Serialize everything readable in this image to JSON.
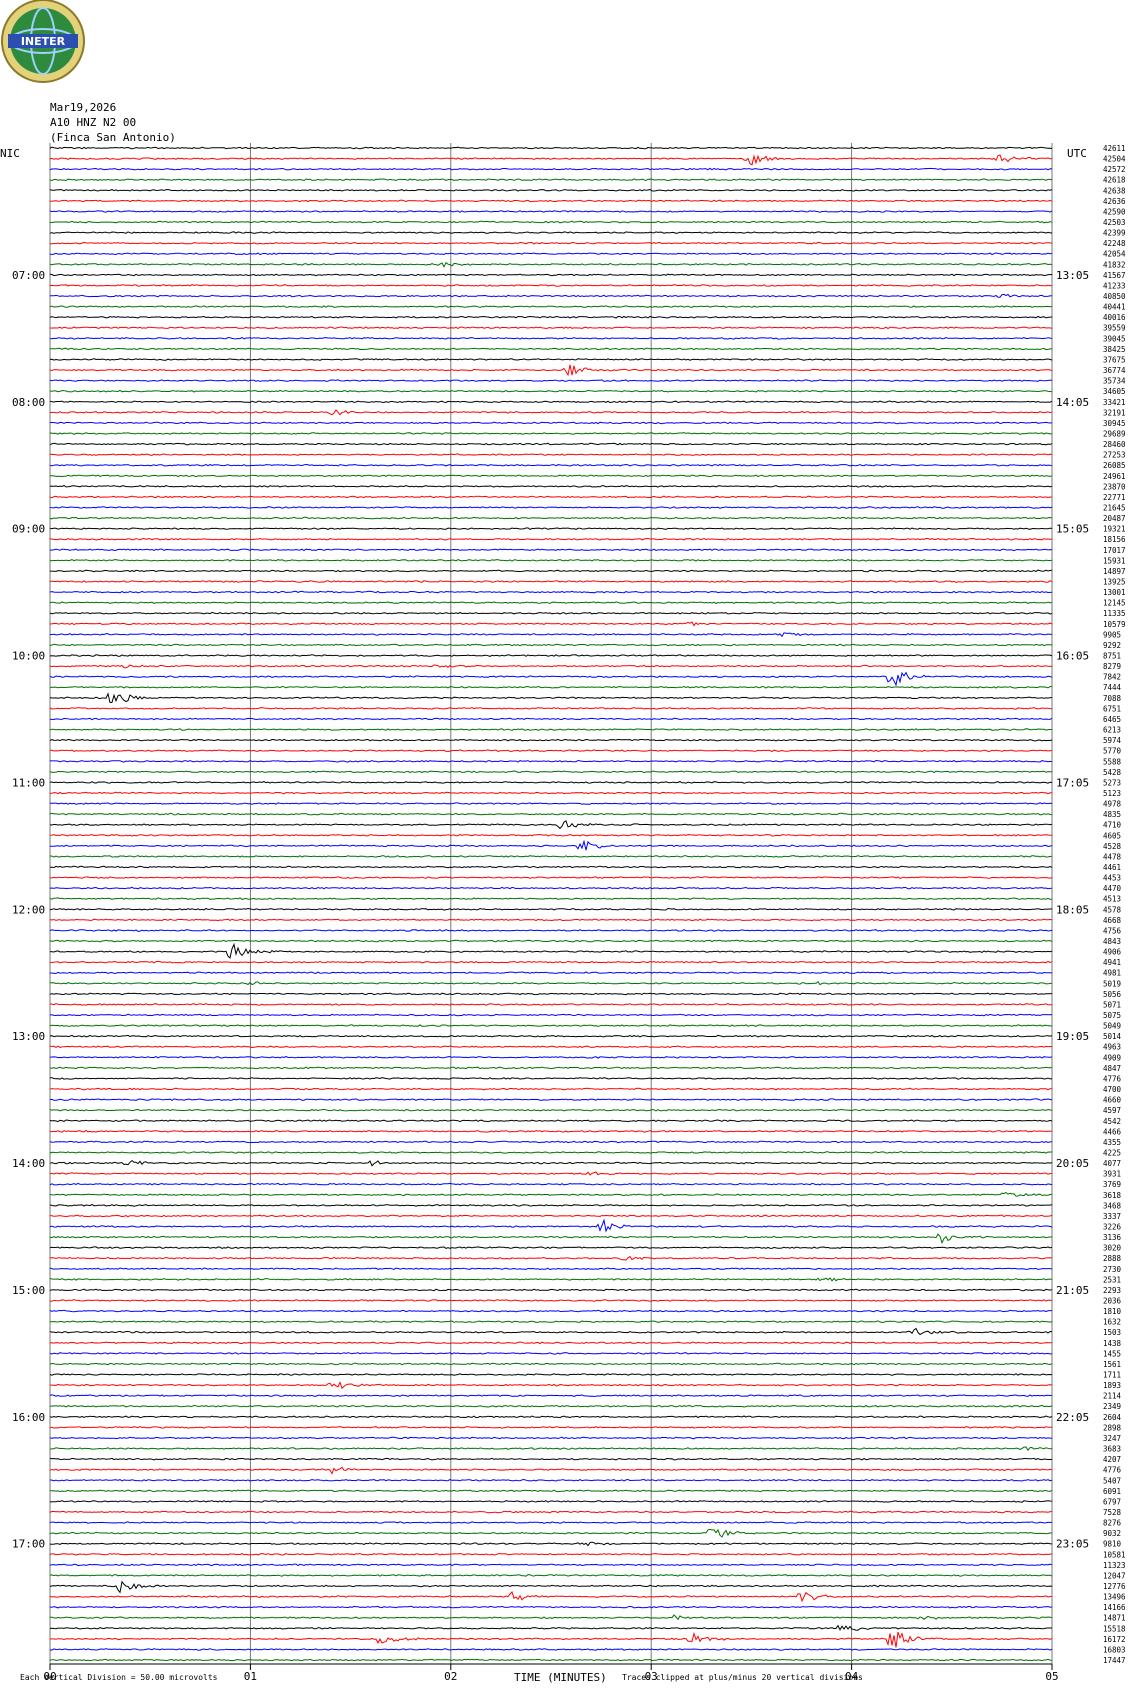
{
  "header": {
    "logo_text": "INETER",
    "date": "Mar19,2026",
    "station": "A10 HNZ N2 00",
    "location": "(Finca San Antonio)"
  },
  "left_timezone": "NIC",
  "right_timezone": "UTC",
  "footer": {
    "scale_note": "Each Vertical Division =    50.00 microvolts",
    "x_axis_label": "TIME (MINUTES)",
    "clip_note": "Traces clipped at plus/minus 20 vertical divisions"
  },
  "colors": {
    "trace_cycle": [
      "#000000",
      "#ff0000",
      "#0000ff",
      "#007000"
    ],
    "grid": "#777777"
  },
  "chart_data": {
    "type": "line",
    "x_label": "TIME (MINUTES)",
    "x_ticks": [
      "00",
      "01",
      "02",
      "03",
      "04",
      "05"
    ],
    "xlim": [
      0,
      5
    ],
    "rows_per_hour": 12,
    "left_hour_labels": [
      "07:00",
      "08:00",
      "09:00",
      "10:00",
      "11:00",
      "12:00",
      "13:00",
      "14:00",
      "15:00",
      "16:00",
      "17:00"
    ],
    "right_hour_labels": [
      "13:05",
      "14:05",
      "15:05",
      "16:05",
      "17:05",
      "18:05",
      "19:05",
      "20:05",
      "21:05",
      "22:05",
      "23:05"
    ],
    "first_labeled_row": 12,
    "row_values": [
      42611,
      42504,
      42572,
      42618,
      42638,
      42636,
      42590,
      42503,
      42399,
      42248,
      42054,
      41832,
      41567,
      41233,
      40850,
      40441,
      40016,
      39559,
      39045,
      38425,
      37675,
      36774,
      35734,
      34605,
      33421,
      32191,
      30945,
      29689,
      28460,
      27253,
      26085,
      24961,
      23870,
      22771,
      21645,
      20487,
      19321,
      18156,
      17017,
      15931,
      14897,
      13925,
      13001,
      12145,
      11335,
      10579,
      9905,
      9292,
      8751,
      8279,
      7842,
      7444,
      7088,
      6751,
      6465,
      6213,
      5974,
      5770,
      5588,
      5428,
      5273,
      5123,
      4978,
      4835,
      4710,
      4605,
      4528,
      4478,
      4461,
      4453,
      4470,
      4513,
      4578,
      4668,
      4756,
      4843,
      4906,
      4941,
      4981,
      5019,
      5056,
      5071,
      5075,
      5049,
      5014,
      4963,
      4909,
      4847,
      4776,
      4700,
      4660,
      4597,
      4542,
      4466,
      4355,
      4225,
      4077,
      3931,
      3769,
      3618,
      3468,
      3337,
      3226,
      3136,
      3020,
      2888,
      2730,
      2531,
      2293,
      2036,
      1810,
      1632,
      1503,
      1438,
      1455,
      1561,
      1711,
      1893,
      2114,
      2349,
      2604,
      2898,
      3247,
      3683,
      4207,
      4776,
      5407,
      6091,
      6797,
      7528,
      8276,
      9032,
      9810,
      10581,
      11323,
      12047,
      12776,
      13496,
      14166,
      14871,
      15518,
      16172,
      16803,
      17447
    ],
    "events": [
      {
        "row": 1,
        "minute": 3.48,
        "amplitude": 9
      },
      {
        "row": 1,
        "minute": 4.73,
        "amplitude": 7
      },
      {
        "row": 11,
        "minute": 1.95,
        "amplitude": 3
      },
      {
        "row": 14,
        "minute": 4.75,
        "amplitude": 3
      },
      {
        "row": 21,
        "minute": 2.58,
        "amplitude": 7
      },
      {
        "row": 25,
        "minute": 1.4,
        "amplitude": 4
      },
      {
        "row": 45,
        "minute": 3.2,
        "amplitude": 2
      },
      {
        "row": 46,
        "minute": 3.65,
        "amplitude": 3
      },
      {
        "row": 49,
        "minute": 0.38,
        "amplitude": 3
      },
      {
        "row": 49,
        "minute": 1.92,
        "amplitude": 2
      },
      {
        "row": 50,
        "minute": 4.2,
        "amplitude": 12
      },
      {
        "row": 52,
        "minute": 0.3,
        "amplitude": 12
      },
      {
        "row": 64,
        "minute": 2.55,
        "amplitude": 7
      },
      {
        "row": 66,
        "minute": 2.65,
        "amplitude": 7
      },
      {
        "row": 76,
        "minute": 0.9,
        "amplitude": 12
      },
      {
        "row": 79,
        "minute": 3.8,
        "amplitude": 3
      },
      {
        "row": 79,
        "minute": 1.0,
        "amplitude": 2
      },
      {
        "row": 96,
        "minute": 0.38,
        "amplitude": 4
      },
      {
        "row": 96,
        "minute": 1.6,
        "amplitude": 3
      },
      {
        "row": 97,
        "minute": 2.7,
        "amplitude": 3
      },
      {
        "row": 99,
        "minute": 4.75,
        "amplitude": 3
      },
      {
        "row": 102,
        "minute": 2.75,
        "amplitude": 8
      },
      {
        "row": 103,
        "minute": 4.45,
        "amplitude": 8
      },
      {
        "row": 105,
        "minute": 2.85,
        "amplitude": 3
      },
      {
        "row": 107,
        "minute": 3.85,
        "amplitude": 3
      },
      {
        "row": 112,
        "minute": 4.3,
        "amplitude": 5
      },
      {
        "row": 117,
        "minute": 1.4,
        "amplitude": 8
      },
      {
        "row": 123,
        "minute": 4.85,
        "amplitude": 3
      },
      {
        "row": 125,
        "minute": 1.4,
        "amplitude": 4
      },
      {
        "row": 131,
        "minute": 3.3,
        "amplitude": 10
      },
      {
        "row": 132,
        "minute": 2.65,
        "amplitude": 3
      },
      {
        "row": 136,
        "minute": 0.33,
        "amplitude": 9
      },
      {
        "row": 137,
        "minute": 2.3,
        "amplitude": 7
      },
      {
        "row": 137,
        "minute": 3.75,
        "amplitude": 6
      },
      {
        "row": 139,
        "minute": 3.1,
        "amplitude": 3
      },
      {
        "row": 139,
        "minute": 4.35,
        "amplitude": 3
      },
      {
        "row": 140,
        "minute": 3.95,
        "amplitude": 5
      },
      {
        "row": 141,
        "minute": 1.65,
        "amplitude": 8
      },
      {
        "row": 141,
        "minute": 3.2,
        "amplitude": 7
      },
      {
        "row": 141,
        "minute": 4.2,
        "amplitude": 12
      }
    ]
  }
}
